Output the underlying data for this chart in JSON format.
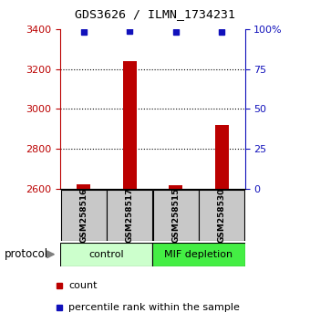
{
  "title": "GDS3626 / ILMN_1734231",
  "samples": [
    "GSM258516",
    "GSM258517",
    "GSM258515",
    "GSM258530"
  ],
  "counts": [
    2622,
    3240,
    2618,
    2920
  ],
  "percentile_ranks": [
    98,
    99,
    98,
    98
  ],
  "ylim_left": [
    2600,
    3400
  ],
  "ylim_right": [
    0,
    100
  ],
  "yticks_left": [
    2600,
    2800,
    3000,
    3200,
    3400
  ],
  "yticks_right": [
    0,
    25,
    50,
    75,
    100
  ],
  "bar_color": "#bb0000",
  "dot_color": "#1111bb",
  "groups": [
    {
      "label": "control",
      "color": "#ccffcc",
      "indices": [
        0,
        1
      ]
    },
    {
      "label": "MIF depletion",
      "color": "#44ee44",
      "indices": [
        2,
        3
      ]
    }
  ],
  "protocol_label": "protocol",
  "legend_count_label": "count",
  "legend_pct_label": "percentile rank within the sample",
  "sample_box_color": "#c8c8c8",
  "background_color": "#ffffff",
  "fig_width": 3.4,
  "fig_height": 3.54,
  "dpi": 100
}
